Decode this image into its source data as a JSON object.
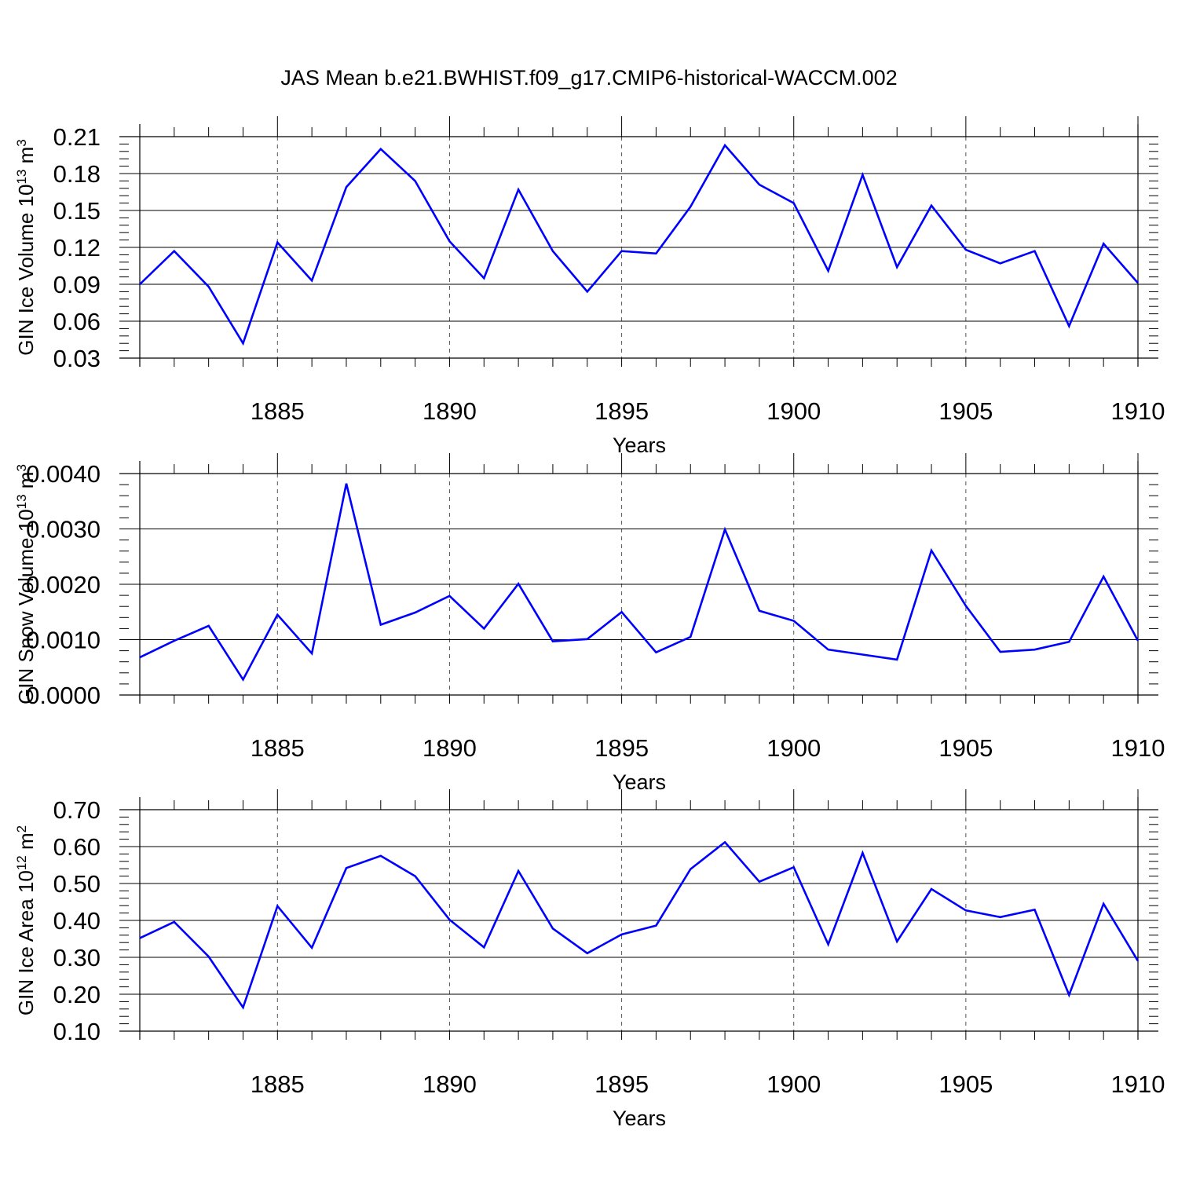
{
  "title": "JAS Mean b.e21.BWHIST.f09_g17.CMIP6-historical-WACCM.002",
  "chart_data": [
    {
      "type": "line",
      "xlabel": "Years",
      "ylabel": "GIN Ice Volume 10",
      "ylabel_exp": "13",
      "ylabel_unit": " m",
      "ylabel_unit_exp": "3",
      "xlim": [
        1881,
        1910
      ],
      "ylim": [
        0.03,
        0.21
      ],
      "xticks": [
        "1885",
        "1890",
        "1895",
        "1900",
        "1905",
        "1910"
      ],
      "yticks": [
        "0.03",
        "0.06",
        "0.09",
        "0.12",
        "0.15",
        "0.18",
        "0.21"
      ],
      "grid": "vertical dashed at labeled years",
      "color": "#0000ff",
      "x": [
        1881,
        1882,
        1883,
        1884,
        1885,
        1886,
        1887,
        1888,
        1889,
        1890,
        1891,
        1892,
        1893,
        1894,
        1895,
        1896,
        1897,
        1898,
        1899,
        1900,
        1901,
        1902,
        1903,
        1904,
        1905,
        1906,
        1907,
        1908,
        1909,
        1910
      ],
      "values": [
        0.09,
        0.117,
        0.088,
        0.042,
        0.124,
        0.093,
        0.169,
        0.2,
        0.174,
        0.125,
        0.095,
        0.167,
        0.117,
        0.084,
        0.117,
        0.115,
        0.153,
        0.203,
        0.171,
        0.156,
        0.101,
        0.179,
        0.104,
        0.154,
        0.118,
        0.107,
        0.117,
        0.056,
        0.123,
        0.091
      ]
    },
    {
      "type": "line",
      "xlabel": "Years",
      "ylabel": "GIN Snow Volume 10",
      "ylabel_exp": "13",
      "ylabel_unit": " m",
      "ylabel_unit_exp": "3",
      "xlim": [
        1881,
        1910
      ],
      "ylim": [
        0.0,
        0.004
      ],
      "xticks": [
        "1885",
        "1890",
        "1895",
        "1900",
        "1905",
        "1910"
      ],
      "yticks": [
        "0.0000",
        "0.0010",
        "0.0020",
        "0.0030",
        "0.0040"
      ],
      "grid": "vertical dashed at labeled years",
      "color": "#0000ff",
      "x": [
        1881,
        1882,
        1883,
        1884,
        1885,
        1886,
        1887,
        1888,
        1889,
        1890,
        1891,
        1892,
        1893,
        1894,
        1895,
        1896,
        1897,
        1898,
        1899,
        1900,
        1901,
        1902,
        1903,
        1904,
        1905,
        1906,
        1907,
        1908,
        1909,
        1910
      ],
      "values": [
        0.00068,
        0.00098,
        0.00125,
        0.00028,
        0.00145,
        0.00075,
        0.00382,
        0.00127,
        0.00149,
        0.00179,
        0.0012,
        0.00201,
        0.00097,
        0.00101,
        0.0015,
        0.00077,
        0.00105,
        0.00299,
        0.00152,
        0.00134,
        0.00082,
        0.00073,
        0.00064,
        0.00261,
        0.00161,
        0.00078,
        0.00082,
        0.00096,
        0.00214,
        0.00098
      ]
    },
    {
      "type": "line",
      "xlabel": "Years",
      "ylabel": "GIN Ice Area 10",
      "ylabel_exp": "12",
      "ylabel_unit": " m",
      "ylabel_unit_exp": "2",
      "xlim": [
        1881,
        1910
      ],
      "ylim": [
        0.1,
        0.7
      ],
      "xticks": [
        "1885",
        "1890",
        "1895",
        "1900",
        "1905",
        "1910"
      ],
      "yticks": [
        "0.10",
        "0.20",
        "0.30",
        "0.40",
        "0.50",
        "0.60",
        "0.70"
      ],
      "grid": "vertical dashed at labeled years",
      "color": "#0000ff",
      "x": [
        1881,
        1882,
        1883,
        1884,
        1885,
        1886,
        1887,
        1888,
        1889,
        1890,
        1891,
        1892,
        1893,
        1894,
        1895,
        1896,
        1897,
        1898,
        1899,
        1900,
        1901,
        1902,
        1903,
        1904,
        1905,
        1906,
        1907,
        1908,
        1909,
        1910
      ],
      "values": [
        0.352,
        0.396,
        0.302,
        0.164,
        0.439,
        0.326,
        0.542,
        0.575,
        0.52,
        0.402,
        0.327,
        0.534,
        0.378,
        0.311,
        0.362,
        0.386,
        0.539,
        0.612,
        0.505,
        0.544,
        0.335,
        0.583,
        0.343,
        0.485,
        0.427,
        0.409,
        0.429,
        0.198,
        0.445,
        0.29
      ]
    }
  ]
}
